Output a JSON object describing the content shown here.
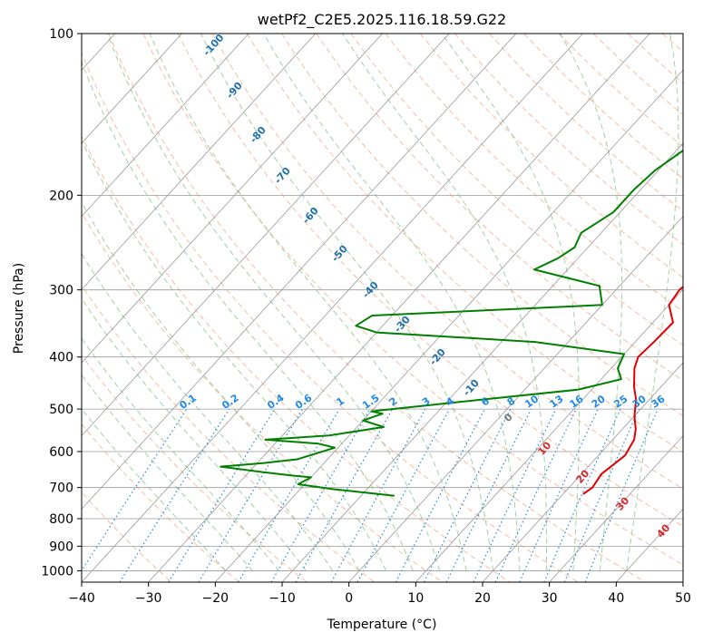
{
  "chart_data": {
    "type": "skew-t",
    "title": "wetPf2_C2E5.2025.116.18.59.G22",
    "xlabel": "Temperature (°C)",
    "ylabel": "Pressure (hPa)",
    "xlim": [
      -40,
      50
    ],
    "ylim": [
      1050,
      100
    ],
    "y_scale": "log",
    "grid": true,
    "x_ticks": [
      -40,
      -30,
      -20,
      -10,
      0,
      10,
      20,
      30,
      40,
      50
    ],
    "x_tick_labels": [
      "−40",
      "−30",
      "−20",
      "−10",
      "0",
      "10",
      "20",
      "30",
      "40",
      "50"
    ],
    "y_ticks": [
      100,
      200,
      300,
      400,
      500,
      600,
      700,
      800,
      900,
      1000
    ],
    "y_tick_labels": [
      "100",
      "200",
      "300",
      "400",
      "500",
      "600",
      "700",
      "800",
      "900",
      "1000"
    ],
    "colors": {
      "temperature": "#e00000",
      "dewpoint": "#008000",
      "isotherm_annotation": "#1f6fb0",
      "isotherm_annotation_positive": "#d62728",
      "mixing_ratio": "#1e88e5",
      "dry_adiabat": "#f4a582",
      "moist_adiabat": "#8fc98f",
      "grid": "#9a9a9a"
    },
    "series": [
      {
        "name": "",
        "role": "temperature",
        "points": [
          [
            23.0,
            720
          ],
          [
            23.5,
            700
          ],
          [
            23.0,
            660
          ],
          [
            24.0,
            610
          ],
          [
            23.2,
            570
          ],
          [
            22.0,
            545
          ],
          [
            20.0,
            515
          ],
          [
            18.0,
            480
          ],
          [
            16.0,
            455
          ],
          [
            13.5,
            420
          ],
          [
            12.5,
            400
          ],
          [
            12.8,
            375
          ],
          [
            13.0,
            345
          ],
          [
            10.0,
            320
          ],
          [
            9.5,
            300
          ],
          [
            10.0,
            285
          ],
          [
            9.0,
            260
          ],
          [
            8.5,
            230
          ],
          [
            8.5,
            200
          ],
          [
            7.5,
            180
          ],
          [
            6.0,
            160
          ],
          [
            4.5,
            145
          ],
          [
            4.0,
            130
          ],
          [
            3.5,
            120
          ],
          [
            3.0,
            110
          ],
          [
            4.0,
            100
          ]
        ]
      },
      {
        "name": "",
        "role": "dewpoint",
        "points": [
          [
            -5.0,
            725
          ],
          [
            -15.0,
            705
          ],
          [
            -21.0,
            690
          ],
          [
            -20.0,
            670
          ],
          [
            -23.0,
            665
          ],
          [
            -28.0,
            655
          ],
          [
            -35.0,
            640
          ],
          [
            -29.0,
            630
          ],
          [
            -24.5,
            620
          ],
          [
            -20.5,
            590
          ],
          [
            -23.5,
            580
          ],
          [
            -32.0,
            570
          ],
          [
            -23.0,
            560
          ],
          [
            -16.0,
            540
          ],
          [
            -20.0,
            525
          ],
          [
            -18.0,
            510
          ],
          [
            -20.0,
            505
          ],
          [
            -5.0,
            480
          ],
          [
            8.0,
            460
          ],
          [
            13.0,
            440
          ],
          [
            11.0,
            420
          ],
          [
            10.0,
            395
          ],
          [
            -5.0,
            375
          ],
          [
            -30.0,
            360
          ],
          [
            -34.0,
            350
          ],
          [
            -33.0,
            335
          ],
          [
            0.0,
            320
          ],
          [
            -3.0,
            295
          ],
          [
            -15.0,
            275
          ],
          [
            -13.0,
            262
          ],
          [
            -12.0,
            250
          ],
          [
            -13.0,
            235
          ],
          [
            -11.0,
            215
          ],
          [
            -11.0,
            195
          ],
          [
            -10.5,
            180
          ],
          [
            -9.0,
            165
          ],
          [
            -9.0,
            150
          ],
          [
            -9.0,
            135
          ],
          [
            -6.0,
            120
          ],
          [
            -4.5,
            110
          ],
          [
            -2.0,
            100
          ]
        ]
      }
    ],
    "isotherm_labels": [
      "-100",
      "-90",
      "-80",
      "-70",
      "-60",
      "-50",
      "-40",
      "-30",
      "-20",
      "-10",
      "0",
      "10",
      "20",
      "30",
      "40"
    ],
    "mixing_ratio_labels": [
      "0.1",
      "0.2",
      "0.4",
      "0.6",
      "1",
      "1.5",
      "2",
      "3",
      "4",
      "6",
      "8",
      "10",
      "13",
      "16",
      "20",
      "25",
      "30",
      "36"
    ]
  }
}
